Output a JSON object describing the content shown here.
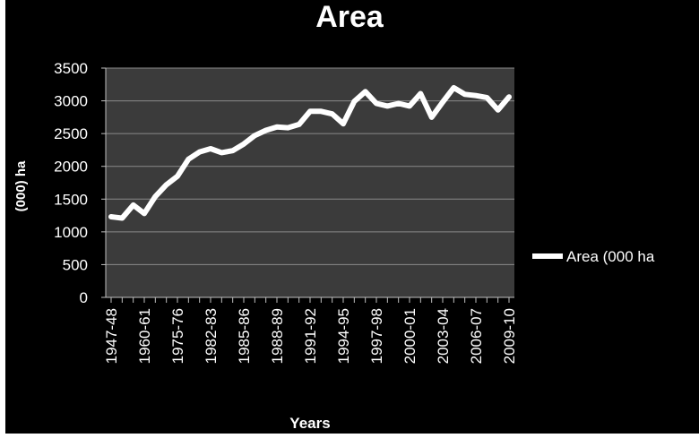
{
  "chart_data": {
    "type": "line",
    "title": "Area",
    "xlabel": "Years",
    "ylabel": "(000) ha",
    "ylim": [
      0,
      3500
    ],
    "y_ticks": [
      0,
      500,
      1000,
      1500,
      2000,
      2500,
      3000,
      3500
    ],
    "x_tick_labels": [
      "1947-48",
      "1960-61",
      "1975-76",
      "1982-83",
      "1985-86",
      "1988-89",
      "1991-92",
      "1994-95",
      "1997-98",
      "2000-01",
      "2003-04",
      "2006-07",
      "2009-10"
    ],
    "x_tick_positions": [
      0,
      3,
      6,
      9,
      12,
      15,
      18,
      21,
      24,
      27,
      30,
      33,
      36
    ],
    "grid": true,
    "legend_position": "right",
    "series": [
      {
        "name": "Area (000 ha",
        "color": "#ffffff",
        "values": [
          1230,
          1210,
          1410,
          1280,
          1540,
          1720,
          1850,
          2110,
          2220,
          2270,
          2210,
          2240,
          2340,
          2470,
          2550,
          2600,
          2590,
          2640,
          2840,
          2840,
          2800,
          2650,
          2990,
          3140,
          2960,
          2920,
          2960,
          2920,
          3110,
          2750,
          2980,
          3200,
          3100,
          3080,
          3050,
          2860,
          3060
        ]
      }
    ]
  }
}
